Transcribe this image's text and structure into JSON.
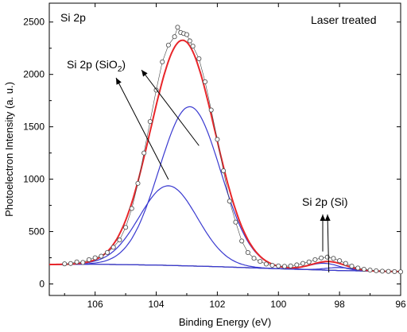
{
  "chart_data": {
    "type": "line",
    "title": "",
    "xlabel": "Binding Energy (eV)",
    "ylabel": "Photoelectron Intensity (a. u.)",
    "xlim": [
      107.5,
      96
    ],
    "ylim": [
      -110,
      2680
    ],
    "x_reversed": true,
    "x_ticks": [
      106,
      104,
      102,
      100,
      98,
      96
    ],
    "y_ticks": [
      0,
      500,
      1000,
      1500,
      2000,
      2500
    ],
    "grid": false,
    "legend": "none",
    "annotations": {
      "region": "Si 2p",
      "treatment": "Laser treated",
      "oxide_peak_label": "Si 2p (SiO",
      "oxide_peak_sub": "2",
      "oxide_peak_close": ")",
      "si_peak_label": "Si 2p (Si)"
    },
    "colors": {
      "data_points": "#555555",
      "envelope": "#e8262a",
      "components": "#3a3ad0",
      "background": "#b8b020"
    },
    "background_line": {
      "x": [
        107.5,
        106,
        104,
        102,
        100,
        98,
        96
      ],
      "y": [
        185,
        188,
        180,
        165,
        145,
        128,
        118
      ]
    },
    "components": [
      {
        "center": 103.6,
        "height": 760,
        "sigma": 0.95
      },
      {
        "center": 102.9,
        "height": 1520,
        "sigma": 1.0
      },
      {
        "center": 98.5,
        "height": 65,
        "sigma": 0.5
      },
      {
        "center": 98.0,
        "height": 28,
        "sigma": 0.45
      }
    ],
    "points": {
      "x": [
        107.0,
        106.8,
        106.6,
        106.4,
        106.2,
        106.0,
        105.8,
        105.6,
        105.4,
        105.2,
        105.0,
        104.8,
        104.6,
        104.4,
        104.2,
        104.0,
        103.8,
        103.6,
        103.4,
        103.3,
        103.2,
        103.1,
        103.0,
        102.9,
        102.8,
        102.6,
        102.4,
        102.2,
        102.0,
        101.8,
        101.6,
        101.4,
        101.2,
        101.0,
        100.8,
        100.6,
        100.4,
        100.2,
        100.0,
        99.8,
        99.6,
        99.4,
        99.2,
        99.0,
        98.8,
        98.6,
        98.4,
        98.2,
        98.0,
        97.8,
        97.6,
        97.4,
        97.2,
        97.0,
        96.8,
        96.6,
        96.4,
        96.2,
        96.0
      ],
      "y": [
        192,
        195,
        210,
        205,
        232,
        250,
        265,
        300,
        350,
        420,
        540,
        720,
        960,
        1250,
        1550,
        1850,
        2120,
        2280,
        2360,
        2450,
        2400,
        2390,
        2380,
        2320,
        2270,
        2150,
        1930,
        1660,
        1380,
        1080,
        790,
        590,
        410,
        300,
        245,
        215,
        190,
        178,
        172,
        168,
        172,
        182,
        196,
        210,
        232,
        248,
        256,
        244,
        222,
        196,
        170,
        152,
        140,
        132,
        126,
        122,
        120,
        118,
        116
      ]
    }
  }
}
